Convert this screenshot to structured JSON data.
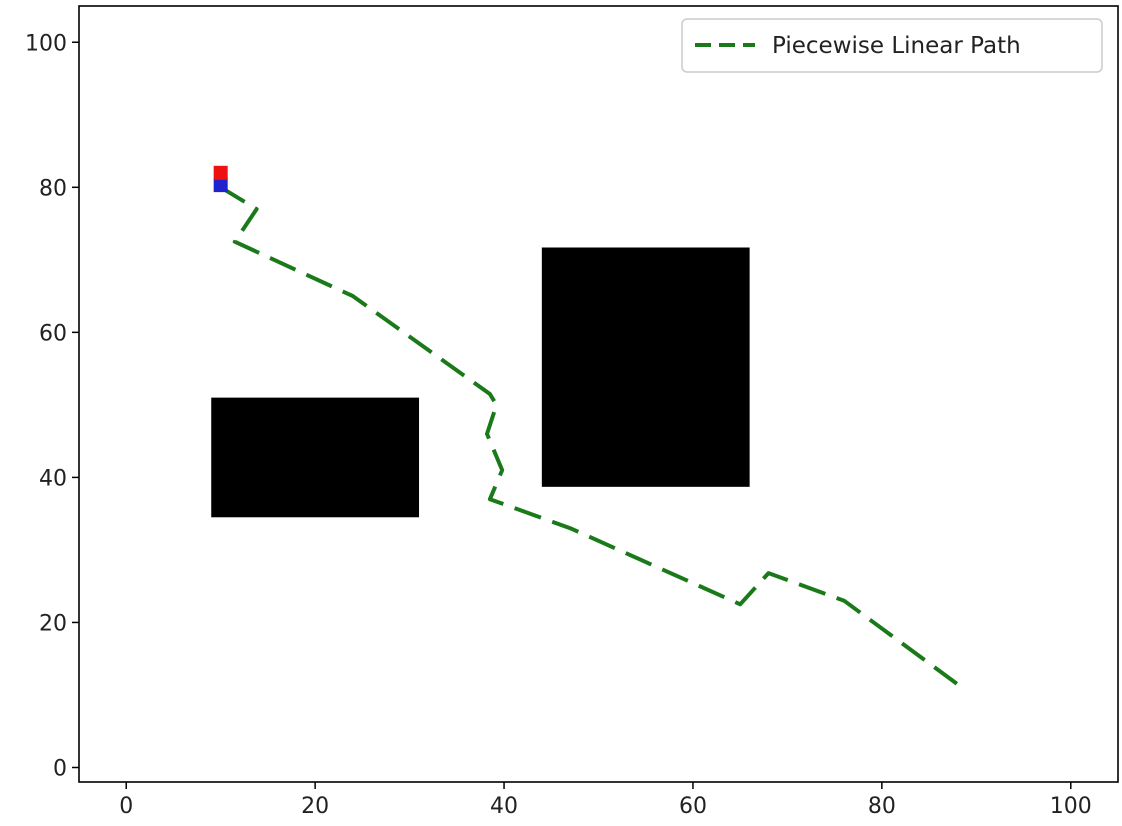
{
  "chart_data": {
    "type": "line",
    "title": "",
    "xlabel": "",
    "ylabel": "",
    "xlim": [
      -5,
      105
    ],
    "ylim": [
      -2,
      105
    ],
    "xticks": [
      "0",
      "20",
      "40",
      "60",
      "80",
      "100"
    ],
    "yticks": [
      "0",
      "20",
      "40",
      "60",
      "80",
      "100"
    ],
    "grid": false,
    "legend_position": "top-right",
    "series": [
      {
        "name": "Piecewise Linear Path",
        "style": "dashed",
        "color": "#1a7a1a",
        "x": [
          10,
          13.8,
          11.5,
          24,
          38.5,
          39.2,
          38.2,
          39.8,
          38.5,
          47,
          65,
          68,
          76,
          88
        ],
        "y": [
          80,
          77,
          72.5,
          65,
          51.5,
          50,
          46,
          41,
          37,
          33,
          22.5,
          26.8,
          23,
          11.5
        ]
      }
    ],
    "markers": [
      {
        "name": "start",
        "shape": "square",
        "color": "#2222cc",
        "x": 10,
        "y": 80.3
      },
      {
        "name": "goal",
        "shape": "square",
        "color": "#ee1111",
        "x": 10,
        "y": 82
      }
    ],
    "obstacles": [
      {
        "x": 9,
        "y": 34.5,
        "width": 22,
        "height": 16.5,
        "color": "#000000"
      },
      {
        "x": 44,
        "y": 38.7,
        "width": 22,
        "height": 33,
        "color": "#000000"
      }
    ]
  }
}
